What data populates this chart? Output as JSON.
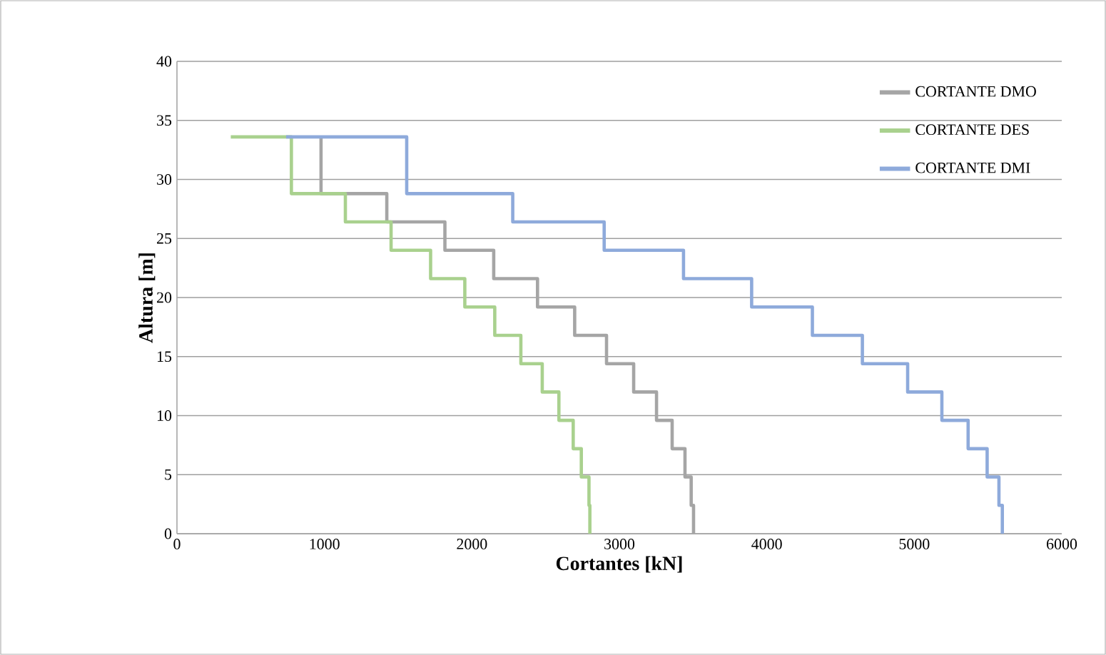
{
  "chart_data": {
    "type": "line",
    "xlabel": "Cortantes [kN]",
    "ylabel": "Altura [m]",
    "xlim": [
      0,
      6000
    ],
    "ylim": [
      0,
      40
    ],
    "xticks": [
      0,
      1000,
      2000,
      3000,
      4000,
      5000,
      6000
    ],
    "yticks": [
      0,
      5,
      10,
      15,
      20,
      25,
      30,
      35,
      40
    ],
    "grid": "y",
    "legend": "top right",
    "marker": "none",
    "line_style": "solid",
    "series": [
      {
        "name": "CORTANTE DMO",
        "color": "#a5a5a5",
        "x": [
          977,
          977,
          1423,
          1423,
          1817,
          1817,
          2148,
          2148,
          2445,
          2445,
          2697,
          2697,
          2913,
          2913,
          3097,
          3097,
          3252,
          3252,
          3358,
          3358,
          3445,
          3445,
          3487,
          3487,
          3503,
          3503
        ],
        "values": [
          33.6,
          28.8,
          28.8,
          26.4,
          26.4,
          24,
          24,
          21.6,
          21.6,
          19.2,
          19.2,
          16.8,
          16.8,
          14.4,
          14.4,
          12,
          12,
          9.6,
          9.6,
          7.2,
          7.2,
          4.8,
          4.8,
          2.4,
          2.4,
          0
        ]
      },
      {
        "name": "CORTANTE DES",
        "color": "#a9d18e",
        "x": [
          365,
          776,
          776,
          1142,
          1142,
          1452,
          1452,
          1720,
          1720,
          1952,
          1952,
          2155,
          2155,
          2332,
          2332,
          2477,
          2477,
          2590,
          2590,
          2687,
          2687,
          2742,
          2742,
          2794,
          2794,
          2800,
          2800
        ],
        "values": [
          33.6,
          33.6,
          28.8,
          28.8,
          26.4,
          26.4,
          24,
          24,
          21.6,
          21.6,
          19.2,
          19.2,
          16.8,
          16.8,
          14.4,
          14.4,
          12,
          12,
          9.6,
          9.6,
          7.2,
          7.2,
          4.8,
          4.8,
          2.4,
          2.4,
          0
        ]
      },
      {
        "name": "CORTANTE DMI",
        "color": "#8eaadb",
        "x": [
          740,
          1558,
          1558,
          2277,
          2277,
          2897,
          2897,
          3435,
          3435,
          3897,
          3897,
          4309,
          4309,
          4648,
          4648,
          4955,
          4955,
          5187,
          5187,
          5365,
          5365,
          5494,
          5494,
          5574,
          5574,
          5597,
          5597
        ],
        "values": [
          33.6,
          33.6,
          28.8,
          28.8,
          26.4,
          26.4,
          24,
          24,
          21.6,
          21.6,
          19.2,
          19.2,
          16.8,
          16.8,
          14.4,
          14.4,
          12,
          12,
          9.6,
          9.6,
          7.2,
          7.2,
          4.8,
          4.8,
          2.4,
          2.4,
          0
        ]
      }
    ]
  }
}
